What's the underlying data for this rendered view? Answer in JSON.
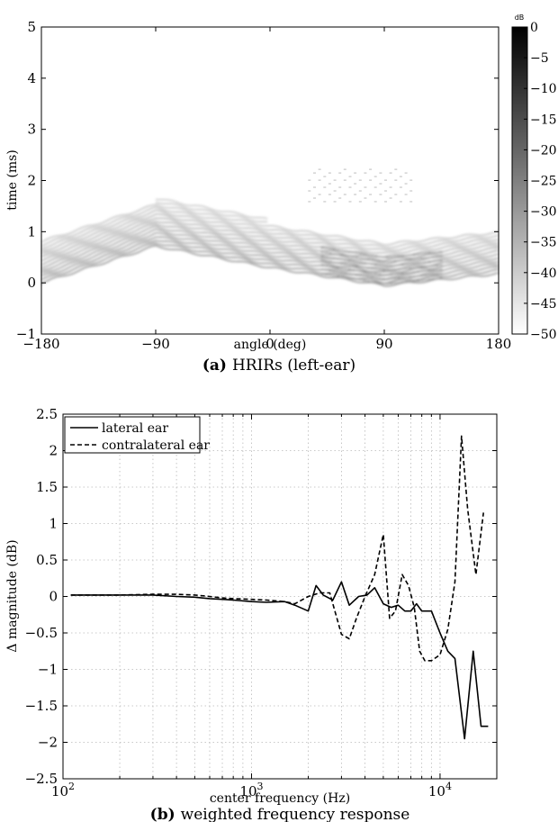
{
  "chart_data": [
    {
      "type": "heatmap",
      "caption_tag": "(a)",
      "caption_text": "HRIRs (left-ear)",
      "xlabel": "angle (deg)",
      "ylabel": "time (ms)",
      "xlim": [
        -180,
        180
      ],
      "ylim": [
        -1,
        5
      ],
      "xticks": [
        -180,
        -90,
        0,
        90,
        180
      ],
      "xtick_labels": [
        "−180",
        "−90",
        "0",
        "90",
        "180"
      ],
      "yticks": [
        -1,
        0,
        1,
        2,
        3,
        4,
        5
      ],
      "ytick_labels": [
        "−1",
        "0",
        "1",
        "2",
        "3",
        "4",
        "5"
      ],
      "colorbar": {
        "unit": "dB",
        "range": [
          -50,
          0
        ],
        "ticks": [
          0,
          -5,
          -10,
          -15,
          -20,
          -25,
          -30,
          -35,
          -40,
          -45,
          -50
        ],
        "tick_labels": [
          "0",
          "−5",
          "−10",
          "−15",
          "−20",
          "−25",
          "−30",
          "−35",
          "−40",
          "−45",
          "−50"
        ],
        "colormap": "gray (white = −50 dB, black = 0 dB)"
      },
      "onset_ridge": {
        "angle": [
          -180,
          -90,
          0,
          90,
          180
        ],
        "time_ms": [
          0.0,
          0.72,
          0.3,
          -0.05,
          0.18
        ]
      },
      "late_reflection": {
        "angle_range": [
          30,
          110
        ],
        "time_ms": [
          1.6,
          2.3
        ]
      }
    },
    {
      "type": "line",
      "caption_tag": "(b)",
      "caption_text": "weighted frequency response",
      "xlabel": "center frequency (Hz)",
      "ylabel": "Δ magnitude (dB)",
      "xscale": "log",
      "xlim": [
        100,
        20000
      ],
      "ylim": [
        -2.5,
        2.5
      ],
      "grid": true,
      "legend_position": "top-left",
      "xticks": [
        100,
        1000,
        10000
      ],
      "xtick_bases": [
        "10",
        "10",
        "10"
      ],
      "xtick_exps": [
        "2",
        "3",
        "4"
      ],
      "yticks": [
        2.5,
        2,
        1.5,
        1,
        0.5,
        0,
        -0.5,
        -1,
        -1.5,
        -2,
        -2.5
      ],
      "ytick_labels": [
        "2.5",
        "2",
        "1.5",
        "1",
        "0.5",
        "0",
        "−0.5",
        "−1",
        "−1.5",
        "−2",
        "−2.5"
      ],
      "series": [
        {
          "name": "lateral ear",
          "style": "solid",
          "x": [
            110,
            150,
            200,
            300,
            400,
            500,
            600,
            700,
            800,
            1000,
            1200,
            1500,
            1700,
            2000,
            2200,
            2400,
            2700,
            3000,
            3300,
            3700,
            4100,
            4500,
            5000,
            5500,
            6000,
            6500,
            7000,
            7500,
            8000,
            8500,
            9000,
            10000,
            11000,
            12000,
            13500,
            15000,
            16500,
            18000
          ],
          "y": [
            0.02,
            0.02,
            0.02,
            0.02,
            0.0,
            -0.01,
            -0.03,
            -0.04,
            -0.05,
            -0.07,
            -0.08,
            -0.07,
            -0.12,
            -0.2,
            0.15,
            0.02,
            -0.05,
            0.2,
            -0.12,
            0.0,
            0.02,
            0.12,
            -0.1,
            -0.15,
            -0.12,
            -0.2,
            -0.2,
            -0.1,
            -0.2,
            -0.2,
            -0.2,
            -0.5,
            -0.75,
            -0.85,
            -1.95,
            -0.75,
            -1.78,
            -1.78
          ]
        },
        {
          "name": "contralateral ear",
          "style": "dashed",
          "x": [
            110,
            150,
            200,
            300,
            400,
            500,
            600,
            700,
            800,
            1000,
            1200,
            1500,
            1700,
            2000,
            2300,
            2600,
            3000,
            3300,
            3600,
            4000,
            4500,
            5000,
            5400,
            5800,
            6300,
            6800,
            7300,
            7800,
            8300,
            9000,
            10000,
            11000,
            12000,
            13000,
            14000,
            15500,
            17000
          ],
          "y": [
            0.02,
            0.02,
            0.02,
            0.03,
            0.03,
            0.02,
            0.0,
            -0.02,
            -0.03,
            -0.04,
            -0.05,
            -0.07,
            -0.1,
            0.0,
            0.05,
            0.05,
            -0.52,
            -0.58,
            -0.3,
            0.0,
            0.3,
            0.85,
            -0.3,
            -0.2,
            0.3,
            0.15,
            -0.15,
            -0.75,
            -0.88,
            -0.88,
            -0.8,
            -0.45,
            0.2,
            2.2,
            1.2,
            0.3,
            1.15
          ]
        }
      ]
    }
  ]
}
